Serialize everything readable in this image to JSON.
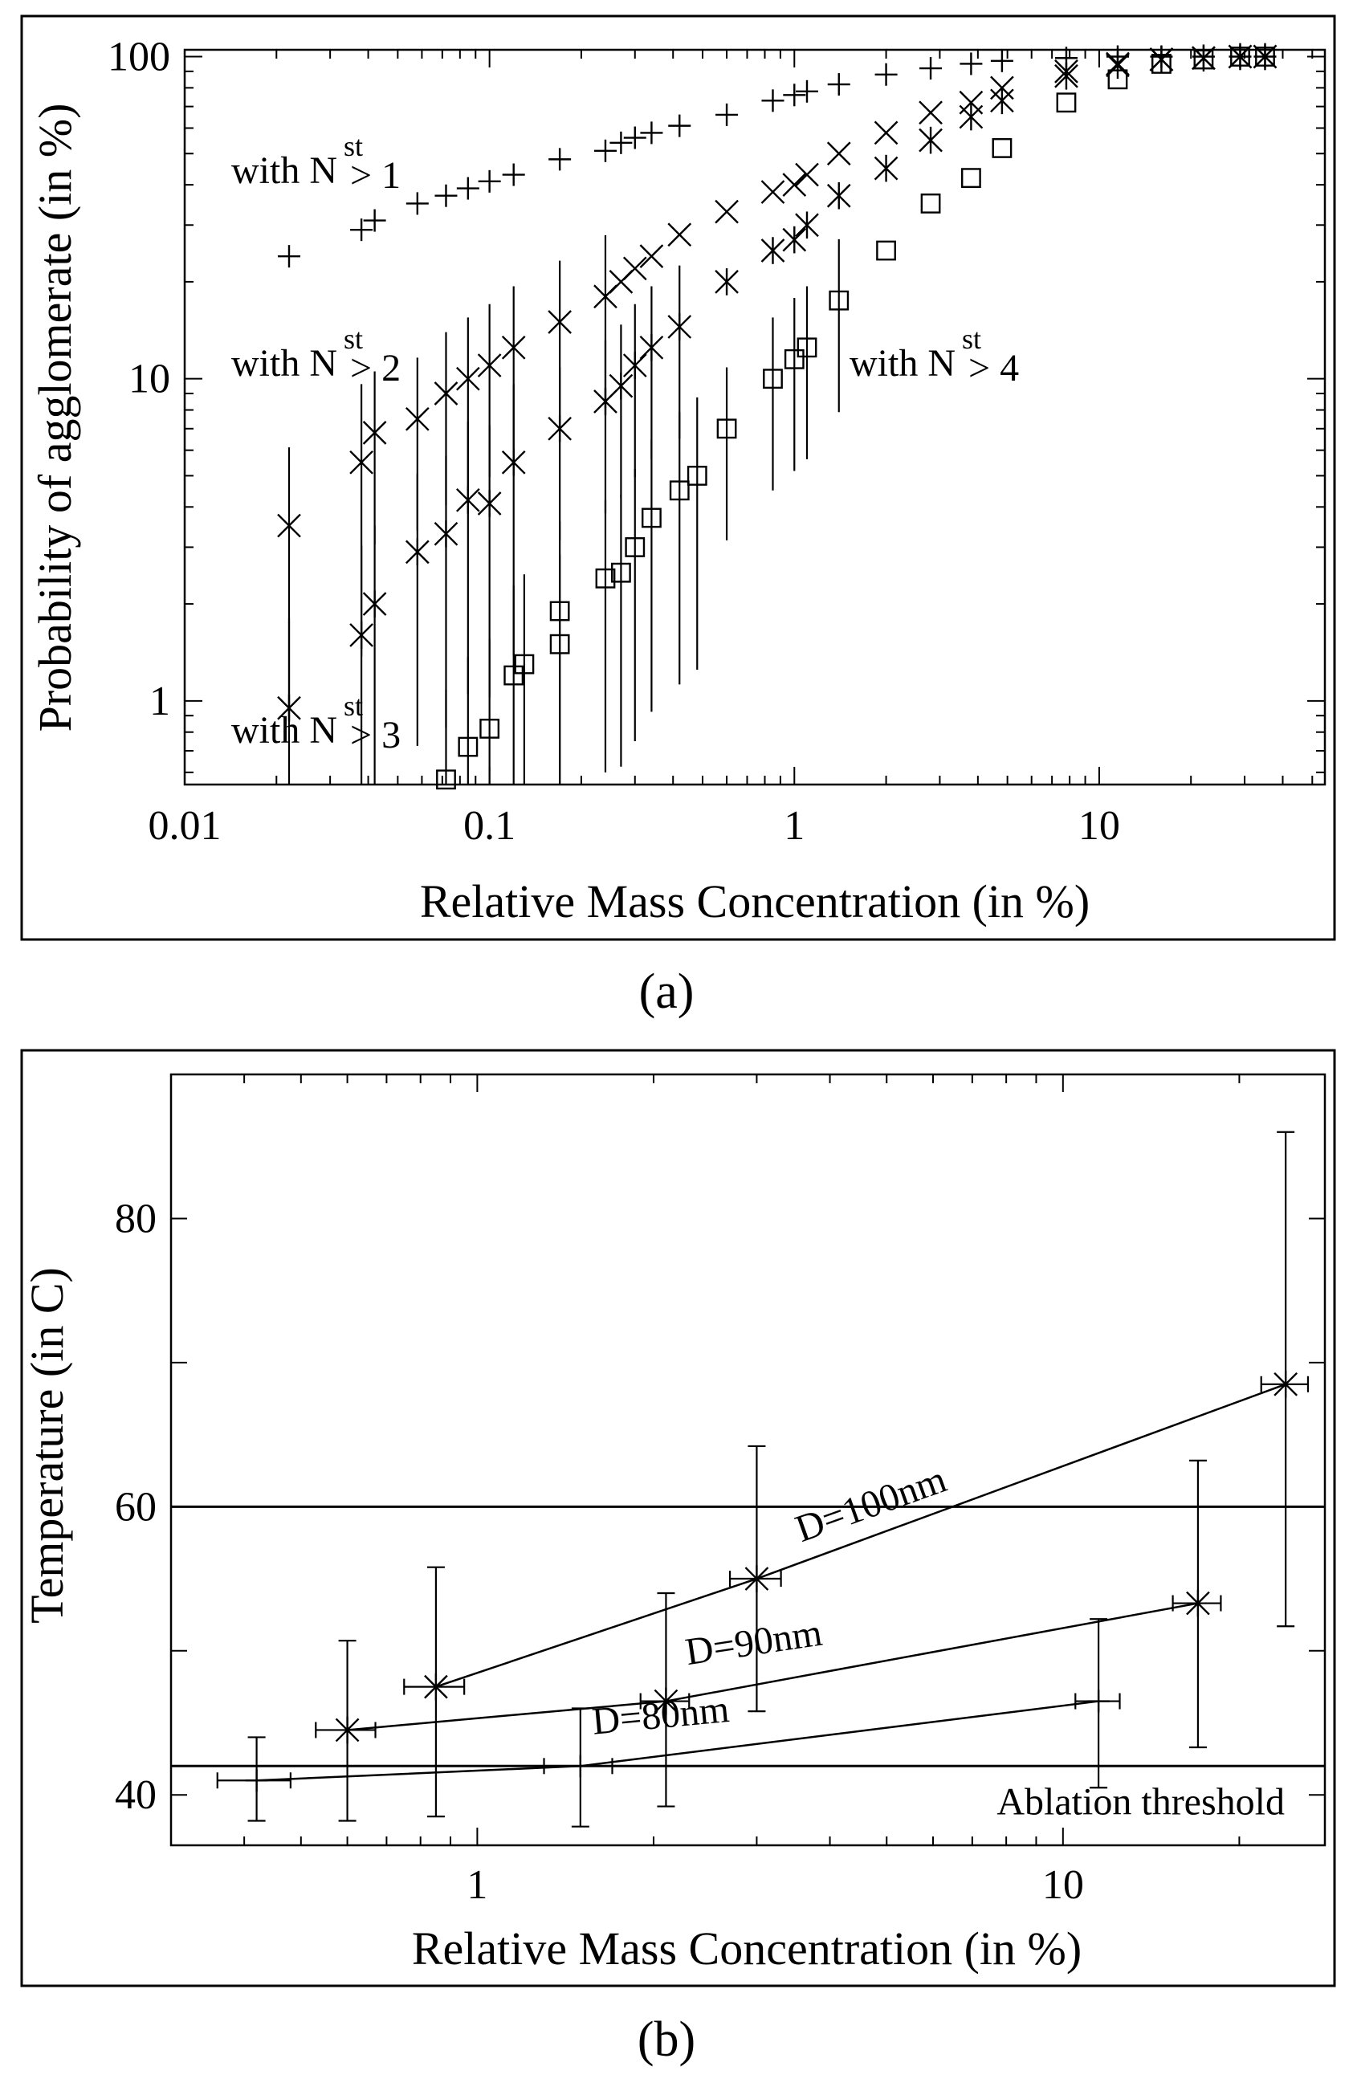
{
  "chart_data": [
    {
      "panel": "(a)",
      "type": "scatter",
      "xscale": "log",
      "yscale": "log",
      "xlabel": "Relative Mass Concentration (in %)",
      "ylabel": "Probability of agglomerate (in %)",
      "xlim": [
        0.01,
        55
      ],
      "ylim": [
        0.55,
        105
      ],
      "xticks": [
        0.01,
        0.1,
        1,
        10
      ],
      "xtick_labels": [
        "0.01",
        "0.1",
        "1",
        "10"
      ],
      "yticks": [
        1,
        10,
        100
      ],
      "ytick_labels": [
        "1",
        "10",
        "100"
      ],
      "series": [
        {
          "name": "with N^st > 1",
          "label_main": "with N",
          "label_sup": "st",
          "label_tail": "> 1",
          "marker": "plus",
          "points": [
            [
              0.022,
              24
            ],
            [
              0.038,
              29
            ],
            [
              0.042,
              31
            ],
            [
              0.058,
              35
            ],
            [
              0.072,
              37
            ],
            [
              0.085,
              39
            ],
            [
              0.1,
              41
            ],
            [
              0.12,
              43
            ],
            [
              0.17,
              48
            ],
            [
              0.24,
              51
            ],
            [
              0.27,
              54
            ],
            [
              0.3,
              56
            ],
            [
              0.34,
              58
            ],
            [
              0.42,
              61
            ],
            [
              0.6,
              66
            ],
            [
              0.85,
              73
            ],
            [
              1.0,
              76
            ],
            [
              1.1,
              78
            ],
            [
              1.4,
              82
            ],
            [
              2.0,
              88
            ],
            [
              2.8,
              92
            ],
            [
              3.8,
              95
            ],
            [
              4.8,
              97
            ],
            [
              7.8,
              99
            ],
            [
              11.5,
              100
            ],
            [
              16,
              100
            ],
            [
              22,
              100
            ],
            [
              29,
              100
            ],
            [
              35,
              100
            ]
          ]
        },
        {
          "name": "with N^st > 2",
          "label_main": "with N",
          "label_sup": "st",
          "label_tail": "> 2",
          "marker": "x",
          "points": [
            [
              0.022,
              3.5
            ],
            [
              0.038,
              5.5
            ],
            [
              0.042,
              6.8
            ],
            [
              0.058,
              7.5
            ],
            [
              0.072,
              9.0
            ],
            [
              0.085,
              10.0
            ],
            [
              0.1,
              11.0
            ],
            [
              0.12,
              12.5
            ],
            [
              0.17,
              15.0
            ],
            [
              0.24,
              18.0
            ],
            [
              0.27,
              20.0
            ],
            [
              0.3,
              22.0
            ],
            [
              0.34,
              24.0
            ],
            [
              0.42,
              28.0
            ],
            [
              0.6,
              33.0
            ],
            [
              0.85,
              38.0
            ],
            [
              1.0,
              40.0
            ],
            [
              1.1,
              43.0
            ],
            [
              1.4,
              50.0
            ],
            [
              2.0,
              58.0
            ],
            [
              2.8,
              67.0
            ],
            [
              3.8,
              72.0
            ],
            [
              4.8,
              80.0
            ],
            [
              7.8,
              90.0
            ],
            [
              11.5,
              95.0
            ],
            [
              16,
              98.0
            ],
            [
              22,
              99.0
            ],
            [
              29,
              100.0
            ],
            [
              35,
              100.0
            ]
          ]
        },
        {
          "name": "with N^st > 3",
          "label_main": "with N",
          "label_sup": "st",
          "label_tail": "> 3",
          "marker": "star",
          "points": [
            [
              0.022,
              0.95
            ],
            [
              0.038,
              1.6
            ],
            [
              0.042,
              2.0
            ],
            [
              0.058,
              2.9
            ],
            [
              0.072,
              3.3
            ],
            [
              0.085,
              4.2
            ],
            [
              0.1,
              4.1
            ],
            [
              0.12,
              5.5
            ],
            [
              0.17,
              7.0
            ],
            [
              0.24,
              8.5
            ],
            [
              0.27,
              9.5
            ],
            [
              0.3,
              11.0
            ],
            [
              0.34,
              12.5
            ],
            [
              0.42,
              14.5
            ],
            [
              0.6,
              20.0
            ],
            [
              0.85,
              25.0
            ],
            [
              1.0,
              27.0
            ],
            [
              1.1,
              30.0
            ],
            [
              1.4,
              37.0
            ],
            [
              2.0,
              45.0
            ],
            [
              2.8,
              55.0
            ],
            [
              3.8,
              65.0
            ],
            [
              4.8,
              73.0
            ],
            [
              7.8,
              87.0
            ],
            [
              11.5,
              94.0
            ],
            [
              16,
              98.0
            ],
            [
              22,
              99.0
            ],
            [
              29,
              100.0
            ],
            [
              35,
              100.0
            ]
          ]
        },
        {
          "name": "with N^st > 4",
          "label_main": "with N",
          "label_sup": "st",
          "label_tail": "> 4",
          "marker": "square",
          "points": [
            [
              0.072,
              0.57
            ],
            [
              0.085,
              0.72
            ],
            [
              0.1,
              0.82
            ],
            [
              0.12,
              1.2
            ],
            [
              0.13,
              1.3
            ],
            [
              0.17,
              1.5
            ],
            [
              0.17,
              1.9
            ],
            [
              0.24,
              2.4
            ],
            [
              0.27,
              2.5
            ],
            [
              0.3,
              3.0
            ],
            [
              0.34,
              3.7
            ],
            [
              0.42,
              4.5
            ],
            [
              0.48,
              5.0
            ],
            [
              0.6,
              7.0
            ],
            [
              0.85,
              10.0
            ],
            [
              1.0,
              11.5
            ],
            [
              1.1,
              12.5
            ],
            [
              1.4,
              17.5
            ],
            [
              2.0,
              25.0
            ],
            [
              2.8,
              35.0
            ],
            [
              3.8,
              42.0
            ],
            [
              4.8,
              52.0
            ],
            [
              7.8,
              72.0
            ],
            [
              11.5,
              85.0
            ],
            [
              16,
              95.0
            ],
            [
              22,
              98.0
            ],
            [
              29,
              100.0
            ],
            [
              35,
              100.0
            ]
          ]
        }
      ]
    },
    {
      "panel": "(b)",
      "type": "line",
      "xscale": "log",
      "yscale": "linear",
      "xlabel": "Relative Mass Concentration (in %)",
      "ylabel": "Temperature (in C)",
      "xlim": [
        0.3,
        28
      ],
      "ylim": [
        36.5,
        90
      ],
      "xticks": [
        1,
        10
      ],
      "xtick_labels": [
        "1",
        "10"
      ],
      "yticks": [
        40,
        50,
        60,
        70,
        80,
        90
      ],
      "ytick_labels": [
        "40",
        "",
        "60",
        "",
        "80",
        ""
      ],
      "hlines": [
        {
          "y": 60,
          "label": ""
        },
        {
          "y": 42,
          "label": "Ablation threshold"
        }
      ],
      "series": [
        {
          "name": "D=100nm",
          "marker": "star",
          "points": [
            {
              "x": 0.85,
              "y": 47.5,
              "ylo": 38.5,
              "yhi": 55.8,
              "xerr": 0.1
            },
            {
              "x": 3.0,
              "y": 55.0,
              "ylo": 45.8,
              "yhi": 64.2,
              "xerr": 0.3
            },
            {
              "x": 24.0,
              "y": 68.5,
              "ylo": 51.7,
              "yhi": 86.0,
              "xerr": 2.2
            }
          ]
        },
        {
          "name": "D=90nm",
          "marker": "star",
          "points": [
            {
              "x": 0.6,
              "y": 44.5,
              "ylo": 38.2,
              "yhi": 50.7,
              "xerr": 0.07
            },
            {
              "x": 2.1,
              "y": 46.5,
              "ylo": 39.2,
              "yhi": 54.0,
              "xerr": 0.2
            },
            {
              "x": 17.0,
              "y": 53.3,
              "ylo": 43.3,
              "yhi": 63.2,
              "xerr": 1.6
            }
          ]
        },
        {
          "name": "D=80nm",
          "marker": "plus",
          "points": [
            {
              "x": 0.42,
              "y": 41.0,
              "ylo": 38.2,
              "yhi": 44.0,
              "xerr": 0.06
            },
            {
              "x": 1.5,
              "y": 42.0,
              "ylo": 37.8,
              "yhi": 46.0,
              "xerr": 0.2
            },
            {
              "x": 11.5,
              "y": 46.5,
              "ylo": 40.5,
              "yhi": 52.2,
              "xerr": 1.0
            }
          ]
        }
      ]
    }
  ]
}
